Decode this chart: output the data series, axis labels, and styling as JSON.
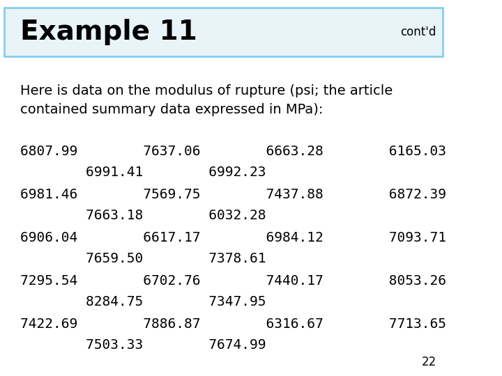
{
  "title": "Example 11",
  "contd": "cont'd",
  "page_number": "22",
  "subtitle": "Here is data on the modulus of rupture (psi; the article\ncontained summary data expressed in MPa):",
  "data_lines": [
    "6807.99        7637.06        6663.28        6165.03",
    "        6991.41        6992.23",
    "6981.46        7569.75        7437.88        6872.39",
    "        7663.18        6032.28",
    "6906.04        6617.17        6984.12        7093.71",
    "        7659.50        7378.61",
    "7295.54        6702.76        7440.17        8053.26",
    "        8284.75        7347.95",
    "7422.69        7886.87        6316.67        7713.65",
    "        7503.33        7674.99"
  ],
  "bg_color": "#ffffff",
  "title_bg_color": "#e8f4f8",
  "title_border_color": "#87ceeb",
  "title_font_size": 28,
  "contd_font_size": 12,
  "subtitle_font_size": 14,
  "data_font_size": 14,
  "page_num_font_size": 12,
  "title_color": "#000000",
  "text_color": "#000000"
}
